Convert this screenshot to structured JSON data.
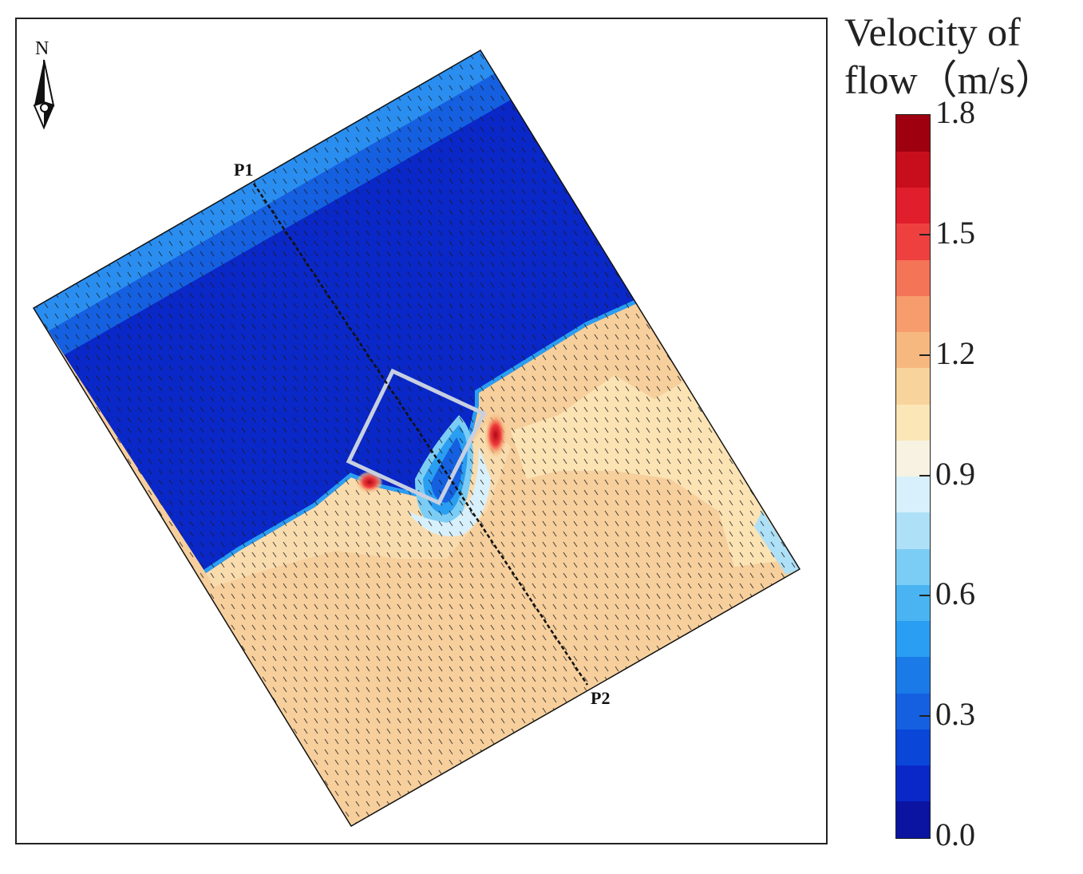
{
  "figure": {
    "north_label": "N",
    "profile_start_label": "P1",
    "profile_end_label": "P2"
  },
  "legend": {
    "title_line1": "Velocity of",
    "title_line2": "flow（m/s）",
    "ticks": [
      "1.8",
      "1.5",
      "1.2",
      "0.9",
      "0.6",
      "0.3",
      "0.0"
    ],
    "colors_low_to_high": [
      "#0a14a0",
      "#0a28c8",
      "#0a46d8",
      "#1560e0",
      "#1a7ae8",
      "#2a9ef2",
      "#4ab4f2",
      "#7ccdf5",
      "#aee0f7",
      "#d8f0fb",
      "#f8f2e2",
      "#fbe6b8",
      "#f8d49c",
      "#f7b880",
      "#f79c6c",
      "#f47458",
      "#ef4040",
      "#e11e2c",
      "#c80e1c",
      "#9e0010"
    ]
  },
  "colors": {
    "low_velocity_zone": "#0a28c8",
    "high_velocity_zone": "#f6cf9c"
  }
}
